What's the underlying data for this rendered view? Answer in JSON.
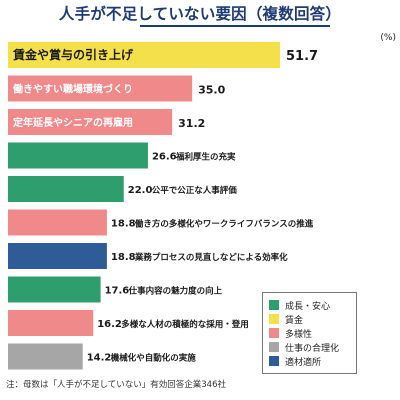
{
  "title": "人手が不足していない要因（複数回答）",
  "unit": "(%)",
  "note": "注：母数は「人手が不足していない」有効回答企業346社",
  "legend": [
    {
      "label": "成長・安心",
      "color": "#2e9e6e"
    },
    {
      "label": "賃金",
      "color": "#f4e04a"
    },
    {
      "label": "多様性",
      "color": "#f08a8a"
    },
    {
      "label": "仕事の合理化",
      "color": "#a6a6a6"
    },
    {
      "label": "適材適所",
      "color": "#2f5c99"
    }
  ],
  "chart_data": {
    "type": "bar",
    "orientation": "horizontal",
    "categories": [
      "賃金や賞与の引き上げ",
      "働きやすい職場環境づくり",
      "定年延長やシニアの再雇用",
      "福利厚生の充実",
      "公平で公正な人事評価",
      "働き方の多様化やワークライフバランスの推進",
      "業務プロセスの見直しなどによる効率化",
      "仕事内容の魅力度の向上",
      "多様な人材の積極的な採用・登用",
      "機械化や自動化の実施"
    ],
    "values": [
      51.7,
      35.0,
      31.2,
      26.6,
      22.0,
      18.8,
      18.8,
      17.6,
      16.2,
      14.2
    ],
    "value_labels": [
      "51.7",
      "35.0",
      "31.2",
      "26.6",
      "22.0",
      "18.8",
      "18.8",
      "17.6",
      "16.2",
      "14.2"
    ],
    "colors": [
      "#f4e04a",
      "#f08a8a",
      "#f08a8a",
      "#2e9e6e",
      "#2e9e6e",
      "#f08a8a",
      "#2f5c99",
      "#2e9e6e",
      "#f08a8a",
      "#a6a6a6"
    ],
    "xlim": [
      0,
      51.7
    ]
  }
}
